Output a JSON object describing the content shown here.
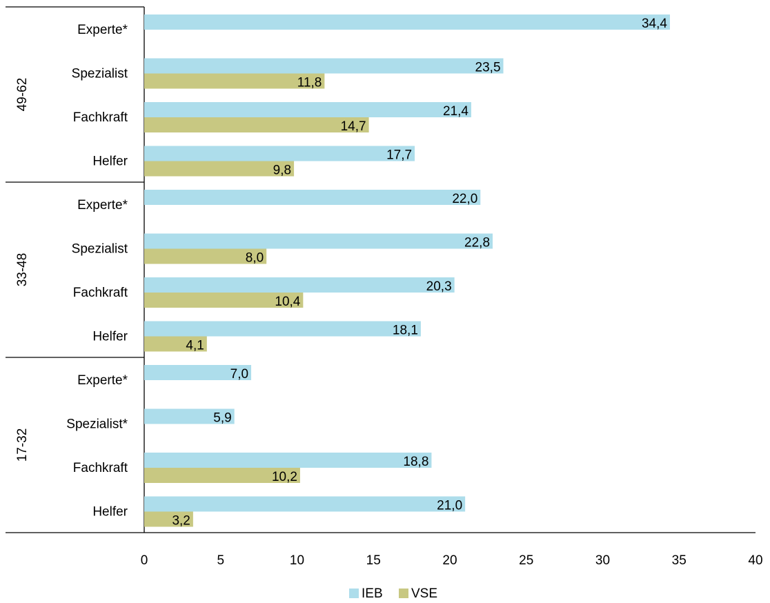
{
  "chart_data": {
    "type": "bar",
    "orientation": "horizontal",
    "xlim": [
      0,
      40
    ],
    "xticks": [
      "0",
      "5",
      "10",
      "15",
      "20",
      "25",
      "30",
      "35",
      "40"
    ],
    "grid": false,
    "legend_position": "bottom",
    "series": [
      {
        "name": "IEB",
        "color": "#ADDDEB"
      },
      {
        "name": "VSE",
        "color": "#C8C882"
      }
    ],
    "groups": [
      {
        "label": "49-62",
        "categories": [
          {
            "label": "Experte*",
            "values": [
              34.4,
              null
            ],
            "value_labels": [
              "34,4",
              ""
            ]
          },
          {
            "label": "Spezialist",
            "values": [
              23.5,
              11.8
            ],
            "value_labels": [
              "23,5",
              "11,8"
            ]
          },
          {
            "label": "Fachkraft",
            "values": [
              21.4,
              14.7
            ],
            "value_labels": [
              "21,4",
              "14,7"
            ]
          },
          {
            "label": "Helfer",
            "values": [
              17.7,
              9.8
            ],
            "value_labels": [
              "17,7",
              "9,8"
            ]
          }
        ]
      },
      {
        "label": "33-48",
        "categories": [
          {
            "label": "Experte*",
            "values": [
              22.0,
              null
            ],
            "value_labels": [
              "22,0",
              ""
            ]
          },
          {
            "label": "Spezialist",
            "values": [
              22.8,
              8.0
            ],
            "value_labels": [
              "22,8",
              "8,0"
            ]
          },
          {
            "label": "Fachkraft",
            "values": [
              20.3,
              10.4
            ],
            "value_labels": [
              "20,3",
              "10,4"
            ]
          },
          {
            "label": "Helfer",
            "values": [
              18.1,
              4.1
            ],
            "value_labels": [
              "18,1",
              "4,1"
            ]
          }
        ]
      },
      {
        "label": "17-32",
        "categories": [
          {
            "label": "Experte*",
            "values": [
              7.0,
              null
            ],
            "value_labels": [
              "7,0",
              ""
            ]
          },
          {
            "label": "Spezialist*",
            "values": [
              5.9,
              null
            ],
            "value_labels": [
              "5,9",
              ""
            ]
          },
          {
            "label": "Fachkraft",
            "values": [
              18.8,
              10.2
            ],
            "value_labels": [
              "18,8",
              "10,2"
            ]
          },
          {
            "label": "Helfer",
            "values": [
              21.0,
              3.2
            ],
            "value_labels": [
              "21,0",
              "3,2"
            ]
          }
        ]
      }
    ]
  }
}
